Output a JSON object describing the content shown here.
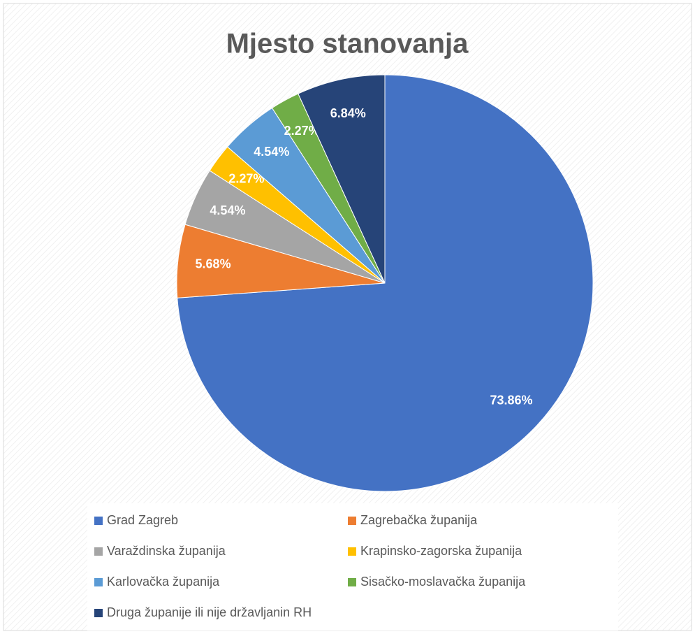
{
  "chart_data": {
    "type": "pie",
    "title": "Mjesto stanovanja",
    "categories": [
      "Grad Zagreb",
      "Zagrebačka županija",
      "Varaždinska županija",
      "Krapinsko-zagorska županija",
      "Karlovačka županija",
      "Sisačko-moslavačka županija",
      "Druga županije ili nije državljanin RH"
    ],
    "values": [
      73.86,
      5.68,
      4.54,
      2.27,
      4.54,
      2.27,
      6.84
    ],
    "value_labels": [
      "73.86%",
      "5.68%",
      "4.54%",
      "2.27%",
      "4.54%",
      "2.27%",
      "6.84%"
    ],
    "colors": [
      "#4472c4",
      "#ed7d31",
      "#a5a5a5",
      "#ffc000",
      "#5b9bd5",
      "#70ad47",
      "#264478"
    ],
    "legend": "bottom"
  }
}
